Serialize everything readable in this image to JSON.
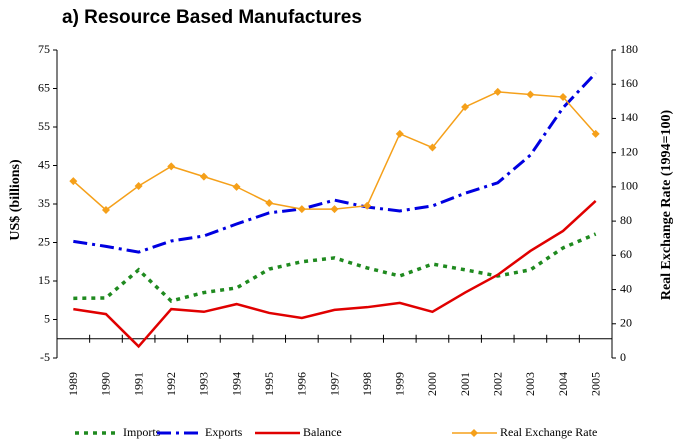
{
  "chart_data": {
    "type": "line",
    "title": "a) Resource Based Manufactures",
    "y_label": "US$ (billions)",
    "y2_label": "Real Exchange Rate (1994=100)",
    "categories": [
      "1989",
      "1990",
      "1991",
      "1992",
      "1993",
      "1994",
      "1995",
      "1996",
      "1997",
      "1998",
      "1999",
      "2000",
      "2001",
      "2002",
      "2003",
      "2004",
      "2005"
    ],
    "ylim": [
      -5,
      75
    ],
    "yticks": [
      -5,
      5,
      15,
      25,
      35,
      45,
      55,
      65,
      75
    ],
    "y2lim": [
      0,
      180
    ],
    "y2ticks": [
      0,
      20,
      40,
      60,
      80,
      100,
      120,
      140,
      160,
      180
    ],
    "legend": "bottom",
    "series": [
      {
        "name": "Imports",
        "color": "#1f8a1f",
        "line_style": "dotted",
        "values": [
          10.5,
          10.6,
          17.9,
          9.8,
          12,
          13.2,
          18.1,
          20,
          21,
          18.4,
          16.3,
          19.4,
          17.9,
          16.3,
          17.9,
          23.6,
          27.2
        ]
      },
      {
        "name": "Exports",
        "color": "#0000e0",
        "line_style": "dashdot",
        "values": [
          25.3,
          24,
          22.5,
          25.4,
          26.7,
          29.8,
          32.7,
          33.7,
          36,
          34.2,
          33.2,
          34.5,
          37.8,
          40.5,
          47.7,
          60,
          69
        ]
      },
      {
        "name": "Balance",
        "color": "#e00000",
        "line_style": "solid",
        "values": [
          7.7,
          6.4,
          -2,
          7.7,
          7,
          9,
          6.7,
          5.4,
          7.5,
          8.2,
          9.3,
          7,
          12,
          16.6,
          22.8,
          28,
          35.8
        ]
      },
      {
        "name": "Real Exchange Rate",
        "color": "#f5a01a",
        "line_style": "solid",
        "marker": "diamond",
        "axis": "y2",
        "values": [
          103.4,
          86.5,
          100.5,
          112,
          106,
          100,
          90.6,
          87,
          87,
          89,
          131,
          123,
          146.7,
          155.5,
          154,
          152.5,
          131
        ]
      }
    ]
  }
}
